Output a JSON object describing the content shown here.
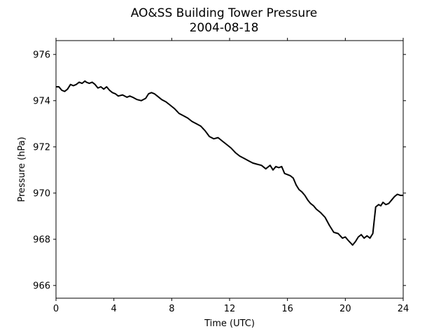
{
  "chart_data": {
    "type": "line",
    "title": "AO&SS Building Tower Pressure",
    "subtitle": "2004-08-18",
    "xlabel": "Time (UTC)",
    "ylabel": "Pressure (hPa)",
    "xlim": [
      0,
      24
    ],
    "ylim": [
      965.45,
      976.6
    ],
    "x_ticks": [
      0,
      4,
      8,
      12,
      16,
      20,
      24
    ],
    "y_ticks": [
      966,
      968,
      970,
      972,
      974,
      976
    ],
    "grid": false,
    "legend": "none",
    "line_color": "#000000",
    "series": [
      {
        "x": [
          0,
          0.2,
          0.4,
          0.6,
          0.8,
          1.0,
          1.2,
          1.4,
          1.6,
          1.8,
          2.0,
          2.1,
          2.3,
          2.5,
          2.7,
          2.9,
          3.1,
          3.3,
          3.5,
          3.7,
          3.9,
          4.1,
          4.3,
          4.6,
          4.9,
          5.1,
          5.3,
          5.6,
          5.9,
          6.2,
          6.4,
          6.6,
          6.8,
          7.0,
          7.3,
          7.6,
          7.9,
          8.2,
          8.5,
          8.8,
          9.1,
          9.4,
          9.7,
          10.0,
          10.3,
          10.6,
          10.9,
          11.2,
          11.5,
          11.8,
          12.1,
          12.4,
          12.7,
          13.0,
          13.3,
          13.6,
          13.9,
          14.2,
          14.5,
          14.8,
          15.0,
          15.2,
          15.4,
          15.6,
          15.8,
          16.0,
          16.2,
          16.4,
          16.6,
          16.8,
          17.0,
          17.2,
          17.4,
          17.6,
          17.8,
          18.0,
          18.3,
          18.6,
          18.9,
          19.2,
          19.5,
          19.8,
          20.0,
          20.2,
          20.5,
          20.7,
          20.9,
          21.1,
          21.3,
          21.5,
          21.7,
          21.9,
          22.1,
          22.3,
          22.45,
          22.6,
          22.8,
          23.0,
          23.2,
          23.4,
          23.6,
          23.8,
          24.0
        ],
        "y": [
          974.6,
          974.6,
          974.45,
          974.4,
          974.5,
          974.7,
          974.65,
          974.7,
          974.8,
          974.75,
          974.85,
          974.8,
          974.75,
          974.8,
          974.7,
          974.55,
          974.6,
          974.5,
          974.6,
          974.45,
          974.35,
          974.3,
          974.2,
          974.25,
          974.15,
          974.2,
          974.15,
          974.05,
          974.0,
          974.1,
          974.3,
          974.35,
          974.3,
          974.2,
          974.05,
          973.95,
          973.8,
          973.65,
          973.45,
          973.35,
          973.25,
          973.1,
          973.0,
          972.9,
          972.7,
          972.45,
          972.35,
          972.4,
          972.25,
          972.1,
          971.95,
          971.75,
          971.6,
          971.5,
          971.4,
          971.3,
          971.25,
          971.2,
          971.05,
          971.2,
          971.0,
          971.15,
          971.1,
          971.15,
          970.85,
          970.8,
          970.75,
          970.65,
          970.35,
          970.15,
          970.05,
          969.9,
          969.7,
          969.55,
          969.45,
          969.3,
          969.15,
          968.95,
          968.6,
          968.3,
          968.25,
          968.05,
          968.1,
          967.95,
          967.75,
          967.9,
          968.1,
          968.2,
          968.05,
          968.15,
          968.05,
          968.25,
          969.4,
          969.5,
          969.45,
          969.6,
          969.5,
          969.55,
          969.7,
          969.85,
          969.95,
          969.9,
          969.9
        ]
      }
    ]
  }
}
